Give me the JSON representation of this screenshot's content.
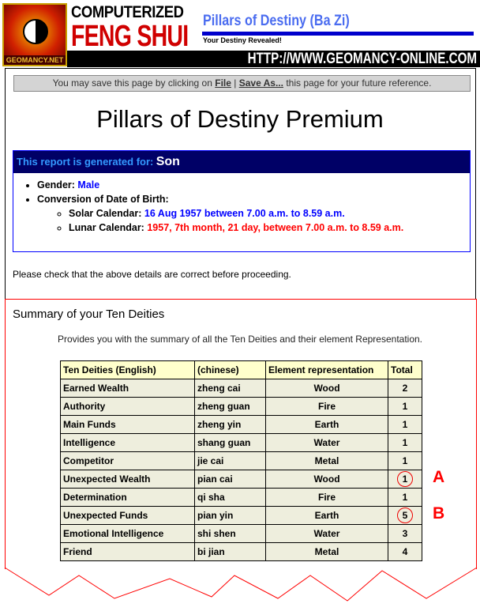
{
  "header": {
    "logo_text": "GEOMANCY.NET",
    "brand_line1": "COMPUTERIZED",
    "brand_line2": "FENG SHUI",
    "product": "Pillars of Destiny (Ba Zi)",
    "tagline": "Your Destiny Revealed!",
    "url": "HTTP://WWW.GEOMANCY-ONLINE.COM"
  },
  "notice": {
    "pre": "You may save this page by clicking on ",
    "file": "File",
    "sep": " | ",
    "saveas": "Save As...",
    "post": " this page for your future reference."
  },
  "page_title": "Pillars of Destiny Premium",
  "report": {
    "label": "This report is generated for:",
    "name": "Son",
    "gender_label": "Gender:",
    "gender": "Male",
    "dob_label": "Conversion of Date of Birth:",
    "solar_label": "Solar Calendar:",
    "solar": "16 Aug 1957 between 7.00 a.m. to 8.59 a.m.",
    "lunar_label": "Lunar Calendar:",
    "lunar": "1957, 7th month, 21 day, between 7.00 a.m. to 8.59 a.m."
  },
  "check_text": "Please check that the above details are correct before proceeding.",
  "summary": {
    "title": "Summary of your Ten Deities",
    "desc": "Provides you with the summary of all the Ten Deities and their element Representation.",
    "headers": [
      "Ten Deities (English)",
      "(chinese)",
      "Element representation",
      "Total"
    ],
    "rows": [
      [
        "Earned Wealth",
        "zheng cai",
        "Wood",
        "2"
      ],
      [
        "Authority",
        "zheng guan",
        "Fire",
        "1"
      ],
      [
        "Main Funds",
        "zheng yin",
        "Earth",
        "1"
      ],
      [
        "Intelligence",
        "shang guan",
        "Water",
        "1"
      ],
      [
        "Competitor",
        "jie cai",
        "Metal",
        "1"
      ],
      [
        "Unexpected Wealth",
        "pian cai",
        "Wood",
        "1"
      ],
      [
        "Determination",
        "qi sha",
        "Fire",
        "1"
      ],
      [
        "Unexpected Funds",
        "pian yin",
        "Earth",
        "5"
      ],
      [
        "Emotional Intelligence",
        "shi shen",
        "Water",
        "3"
      ],
      [
        "Friend",
        "bi jian",
        "Metal",
        "4"
      ]
    ],
    "circled_rows": [
      5,
      7
    ],
    "annotations": [
      "A",
      "B"
    ]
  },
  "colors": {
    "navy": "#000066",
    "accent_blue": "#0000ff",
    "red": "#ff0000",
    "table_bg": "#eeeedd",
    "header_bg": "#ffffcc"
  }
}
